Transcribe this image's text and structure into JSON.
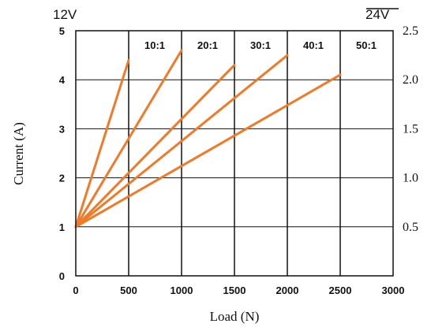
{
  "chart_data": {
    "type": "line",
    "left_axis_title": "Current (A)",
    "xlabel": "Load (N)",
    "left_supply_label": "12V",
    "right_supply_label": "24V",
    "xlim": [
      0,
      3000
    ],
    "ylim": [
      0,
      5
    ],
    "x_ticks": [
      "0",
      "500",
      "1000",
      "1500",
      "2000",
      "2500",
      "3000"
    ],
    "y_ticks_left": [
      "0",
      "1",
      "2",
      "3",
      "4",
      "5"
    ],
    "y_ticks_right": [
      "0.5",
      "1.0",
      "1.5",
      "2.0",
      "2.5"
    ],
    "grid": true,
    "line_color": "#f07a28",
    "series": [
      {
        "name": "10:1",
        "x": [
          0,
          500
        ],
        "y": [
          1.0,
          4.4
        ]
      },
      {
        "name": "20:1",
        "x": [
          0,
          1000
        ],
        "y": [
          1.0,
          4.6
        ]
      },
      {
        "name": "30:1",
        "x": [
          0,
          1500
        ],
        "y": [
          1.0,
          4.3
        ]
      },
      {
        "name": "40:1",
        "x": [
          0,
          2000
        ],
        "y": [
          1.0,
          4.5
        ]
      },
      {
        "name": "50:1",
        "x": [
          0,
          2500
        ],
        "y": [
          1.0,
          4.1
        ]
      }
    ]
  }
}
